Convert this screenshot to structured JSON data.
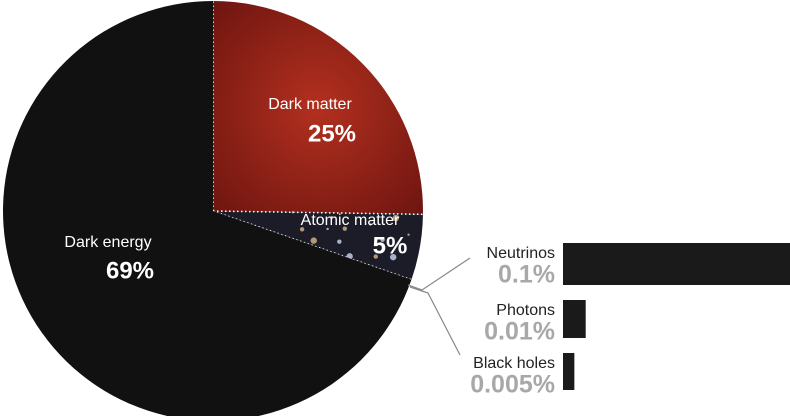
{
  "chart_data": [
    {
      "type": "pie",
      "categories": [
        "Dark matter",
        "Atomic matter",
        "Dark energy"
      ],
      "values": [
        25,
        5,
        69
      ],
      "value_labels": [
        "25%",
        "5%",
        "69%"
      ],
      "colors": [
        "#8a1c14",
        "#1b1c28",
        "#111111"
      ]
    },
    {
      "type": "bar",
      "categories": [
        "Neutrinos",
        "Photons",
        "Black holes"
      ],
      "values": [
        0.1,
        0.01,
        0.005
      ],
      "value_labels": [
        "0.1%",
        "0.01%",
        "0.005%"
      ],
      "color": "#1a1a1a"
    }
  ]
}
